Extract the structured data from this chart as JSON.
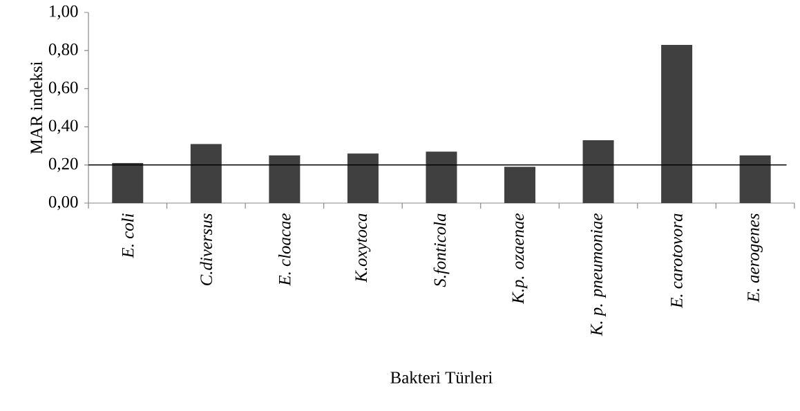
{
  "chart_data": {
    "type": "bar",
    "xlabel": "Bakteri Türleri",
    "ylabel": "MAR indeksi",
    "categories": [
      "E. coli",
      "C.diversus",
      "E. cloacae",
      "K.oxytoca",
      "S.fonticola",
      "K.p. ozaenae",
      "K. p. pneumoniae",
      "E. carotovora",
      "E. aerogenes"
    ],
    "values": [
      0.21,
      0.31,
      0.25,
      0.26,
      0.27,
      0.19,
      0.33,
      0.83,
      0.25
    ],
    "color": "#404040",
    "ylim": [
      0,
      1
    ],
    "yticks": [
      {
        "value": 0,
        "label": "0,00"
      },
      {
        "value": 0.2,
        "label": "0,20"
      },
      {
        "value": 0.4,
        "label": "0,40"
      },
      {
        "value": 0.6,
        "label": "0,60"
      },
      {
        "value": 0.8,
        "label": "0,80"
      },
      {
        "value": 1,
        "label": "1,00"
      }
    ],
    "ref_lines": [
      {
        "axis": "y",
        "value": 0.2,
        "color": "#000000"
      }
    ]
  }
}
